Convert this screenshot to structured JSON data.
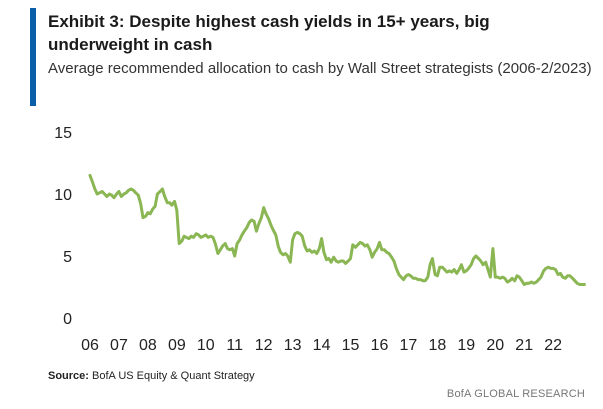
{
  "header": {
    "title": "Exhibit 3: Despite highest cash yields in 15+ years, big underweight in cash",
    "subtitle": "Average recommended allocation to cash by Wall Street strategists (2006-2/2023)"
  },
  "source": {
    "label": "Source:",
    "text": "BofA US Equity & Quant Strategy"
  },
  "footer": "BofA GLOBAL RESEARCH",
  "colors": {
    "accent": "#0b5ea8",
    "line": "#8ab653"
  },
  "chart_data": {
    "type": "line",
    "title": "Exhibit 3: Despite highest cash yields in 15+ years, big underweight in cash",
    "subtitle": "Average recommended allocation to cash by Wall Street strategists (2006-2/2023)",
    "xlabel": "",
    "ylabel": "",
    "ylim": [
      0,
      15
    ],
    "xlim": [
      2006,
      2023.1
    ],
    "y_ticks": [
      "0",
      "5",
      "10",
      "15"
    ],
    "x_ticks": [
      "06",
      "07",
      "08",
      "09",
      "10",
      "11",
      "12",
      "13",
      "14",
      "15",
      "16",
      "17",
      "18",
      "19",
      "20",
      "21",
      "22"
    ],
    "grid": false,
    "legend": "none",
    "series": [
      {
        "x": [
          2006.0,
          2006.08,
          2006.17,
          2006.25,
          2006.33,
          2006.42,
          2006.5,
          2006.58,
          2006.67,
          2006.75,
          2006.83,
          2006.92,
          2007.0,
          2007.08,
          2007.17,
          2007.25,
          2007.33,
          2007.42,
          2007.5,
          2007.58,
          2007.67,
          2007.75,
          2007.83,
          2007.92,
          2008.0,
          2008.08,
          2008.17,
          2008.25,
          2008.33,
          2008.42,
          2008.5,
          2008.58,
          2008.67,
          2008.75,
          2008.83,
          2008.92,
          2009.0,
          2009.08,
          2009.17,
          2009.25,
          2009.33,
          2009.42,
          2009.5,
          2009.58,
          2009.67,
          2009.75,
          2009.83,
          2009.92,
          2010.0,
          2010.08,
          2010.17,
          2010.25,
          2010.33,
          2010.42,
          2010.5,
          2010.58,
          2010.67,
          2010.75,
          2010.83,
          2010.92,
          2011.0,
          2011.08,
          2011.17,
          2011.25,
          2011.33,
          2011.42,
          2011.5,
          2011.58,
          2011.67,
          2011.75,
          2011.83,
          2011.92,
          2012.0,
          2012.08,
          2012.17,
          2012.25,
          2012.33,
          2012.42,
          2012.5,
          2012.58,
          2012.67,
          2012.75,
          2012.83,
          2012.92,
          2013.0,
          2013.08,
          2013.17,
          2013.25,
          2013.33,
          2013.42,
          2013.5,
          2013.58,
          2013.67,
          2013.75,
          2013.83,
          2013.92,
          2014.0,
          2014.08,
          2014.17,
          2014.25,
          2014.33,
          2014.42,
          2014.5,
          2014.58,
          2014.67,
          2014.75,
          2014.83,
          2014.92,
          2015.0,
          2015.08,
          2015.17,
          2015.25,
          2015.33,
          2015.42,
          2015.5,
          2015.58,
          2015.67,
          2015.75,
          2015.83,
          2015.92,
          2016.0,
          2016.08,
          2016.17,
          2016.25,
          2016.33,
          2016.42,
          2016.5,
          2016.58,
          2016.67,
          2016.75,
          2016.83,
          2016.92,
          2017.0,
          2017.08,
          2017.17,
          2017.25,
          2017.33,
          2017.42,
          2017.5,
          2017.58,
          2017.67,
          2017.75,
          2017.83,
          2017.92,
          2018.0,
          2018.08,
          2018.17,
          2018.25,
          2018.33,
          2018.42,
          2018.5,
          2018.58,
          2018.67,
          2018.75,
          2018.83,
          2018.92,
          2019.0,
          2019.08,
          2019.17,
          2019.25,
          2019.33,
          2019.42,
          2019.5,
          2019.58,
          2019.67,
          2019.75,
          2019.83,
          2019.92,
          2020.0,
          2020.08,
          2020.17,
          2020.25,
          2020.33,
          2020.42,
          2020.5,
          2020.58,
          2020.67,
          2020.75,
          2020.83,
          2020.92,
          2021.0,
          2021.08,
          2021.17,
          2021.25,
          2021.33,
          2021.42,
          2021.5,
          2021.58,
          2021.67,
          2021.75,
          2021.83,
          2021.92,
          2022.0,
          2022.08,
          2022.17,
          2022.25,
          2022.33,
          2022.42,
          2022.5,
          2022.58,
          2022.67,
          2022.75,
          2022.83,
          2022.92,
          2023.0,
          2023.08
        ],
        "values": [
          11.5,
          11.0,
          10.4,
          10.0,
          10.1,
          10.2,
          10.0,
          9.8,
          10.0,
          9.9,
          9.7,
          10.0,
          10.2,
          9.8,
          10.0,
          10.1,
          10.3,
          10.4,
          10.3,
          10.1,
          9.9,
          9.2,
          8.1,
          8.2,
          8.5,
          8.4,
          8.8,
          9.0,
          10.0,
          10.2,
          10.4,
          9.8,
          9.3,
          9.3,
          9.1,
          9.4,
          8.7,
          6.0,
          6.2,
          6.6,
          6.5,
          6.4,
          6.6,
          6.5,
          6.8,
          6.7,
          6.5,
          6.6,
          6.7,
          6.5,
          6.6,
          6.5,
          6.0,
          5.2,
          5.5,
          5.8,
          6.0,
          5.6,
          5.5,
          5.6,
          5.0,
          6.0,
          6.3,
          6.7,
          7.0,
          7.3,
          7.7,
          7.9,
          7.8,
          7.0,
          7.6,
          8.1,
          8.9,
          8.4,
          8.0,
          7.5,
          7.1,
          6.7,
          5.8,
          5.3,
          5.1,
          5.2,
          5.0,
          4.5,
          6.3,
          6.8,
          6.9,
          6.8,
          6.6,
          5.8,
          5.4,
          5.5,
          5.3,
          5.4,
          5.2,
          5.6,
          6.4,
          5.3,
          4.7,
          4.8,
          4.5,
          4.9,
          4.6,
          4.5,
          4.6,
          4.6,
          4.4,
          4.6,
          4.8,
          5.9,
          5.7,
          5.9,
          6.1,
          6.0,
          5.8,
          5.9,
          5.5,
          4.9,
          5.3,
          5.6,
          6.1,
          5.5,
          5.5,
          5.3,
          5.2,
          4.9,
          4.6,
          4.0,
          3.5,
          3.3,
          3.1,
          3.4,
          3.5,
          3.4,
          3.2,
          3.2,
          3.1,
          3.1,
          3.0,
          3.0,
          3.3,
          4.3,
          4.8,
          3.5,
          3.4,
          4.1,
          4.1,
          3.9,
          3.7,
          3.8,
          3.7,
          3.9,
          3.6,
          3.9,
          4.3,
          3.7,
          3.8,
          4.0,
          4.3,
          4.8,
          5.0,
          4.8,
          4.6,
          4.3,
          4.5,
          3.9,
          3.3,
          5.6,
          3.3,
          3.3,
          3.2,
          3.3,
          3.2,
          2.9,
          3.0,
          3.2,
          3.0,
          3.4,
          3.3,
          3.0,
          2.7,
          2.8,
          2.8,
          2.9,
          2.8,
          2.9,
          3.1,
          3.3,
          3.8,
          4.0,
          4.1,
          4.0,
          4.0,
          3.9,
          3.5,
          3.6,
          3.3,
          3.2,
          3.4,
          3.4,
          3.2,
          3.0,
          2.8,
          2.7,
          2.7,
          2.7
        ]
      }
    ]
  }
}
